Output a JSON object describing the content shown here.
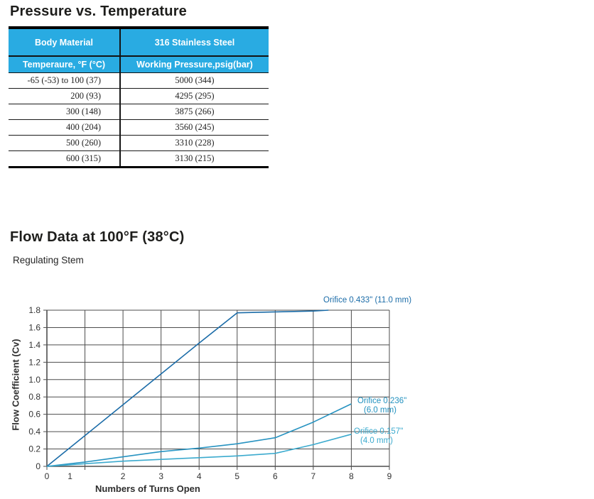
{
  "section1": {
    "title": "Pressure vs. Temperature",
    "table": {
      "header_bg": "#29ABE2",
      "header_text_color": "#ffffff",
      "header_row1": [
        "Body Material",
        "316 Stainless Steel"
      ],
      "header_row2": [
        "Temperaure, °F (°C)",
        "Working Pressure,psig(bar)"
      ],
      "rows": [
        [
          "-65 (-53) to 100 (37)",
          "5000 (344)"
        ],
        [
          "200 (93)",
          "4295 (295)"
        ],
        [
          "300 (148)",
          "3875 (266)"
        ],
        [
          "400 (204)",
          "3560 (245)"
        ],
        [
          "500 (260)",
          "3310 (228)"
        ],
        [
          "600 (315)",
          "3130 (215)"
        ]
      ]
    }
  },
  "section2": {
    "title": "Flow Data at 100°F (38°C)",
    "subtitle": "Regulating Stem"
  },
  "chart_data": {
    "type": "line",
    "title": "",
    "xlabel": "Numbers of Turns Open",
    "ylabel": "Flow Coefficient (Cv)",
    "xlim": [
      0,
      9
    ],
    "ylim": [
      0,
      1.8
    ],
    "grid": true,
    "legend_position": "inline-labels",
    "grid_color": "#4d4d4d",
    "x_tick_labels": [
      "0",
      "1",
      "2",
      "3",
      "4",
      "5",
      "6",
      "7",
      "8",
      "9"
    ],
    "y_tick_labels": [
      "0",
      "0.2",
      "0.4",
      "0.6",
      "0.8",
      "1.0",
      "1.2",
      "1.4",
      "1.6",
      "1.8"
    ],
    "series": [
      {
        "id": "orifice-0433",
        "name": "Orifice 0.433\" (11.0 mm)",
        "label_lines": [
          "Orifice 0.433\" (11.0 mm)",
          ""
        ],
        "color": "#1B6CA8",
        "points": [
          [
            0,
            0
          ],
          [
            1,
            0.355
          ],
          [
            2,
            0.71
          ],
          [
            3,
            1.065
          ],
          [
            4,
            1.42
          ],
          [
            5,
            1.77
          ],
          [
            6,
            1.78
          ],
          [
            7,
            1.79
          ],
          [
            7.4,
            1.8
          ]
        ]
      },
      {
        "id": "orifice-0236",
        "name": "Orifice 0.236\" (6.0 mm)",
        "label_lines": [
          "Orifice 0.236\"",
          "(6.0 mm)"
        ],
        "color": "#2793C1",
        "points": [
          [
            0,
            0
          ],
          [
            1,
            0.05
          ],
          [
            2,
            0.11
          ],
          [
            3,
            0.17
          ],
          [
            4,
            0.21
          ],
          [
            5,
            0.26
          ],
          [
            6,
            0.33
          ],
          [
            7,
            0.51
          ],
          [
            8,
            0.72
          ]
        ]
      },
      {
        "id": "orifice-0157",
        "name": "Orifice 0.157\" (4.0 mm)",
        "label_lines": [
          "Orifice 0.157\"",
          "(4.0 mm)"
        ],
        "color": "#3BAACE",
        "points": [
          [
            0,
            0
          ],
          [
            1,
            0.03
          ],
          [
            2,
            0.06
          ],
          [
            3,
            0.08
          ],
          [
            4,
            0.1
          ],
          [
            5,
            0.12
          ],
          [
            6,
            0.15
          ],
          [
            7,
            0.25
          ],
          [
            8,
            0.37
          ]
        ]
      }
    ]
  }
}
